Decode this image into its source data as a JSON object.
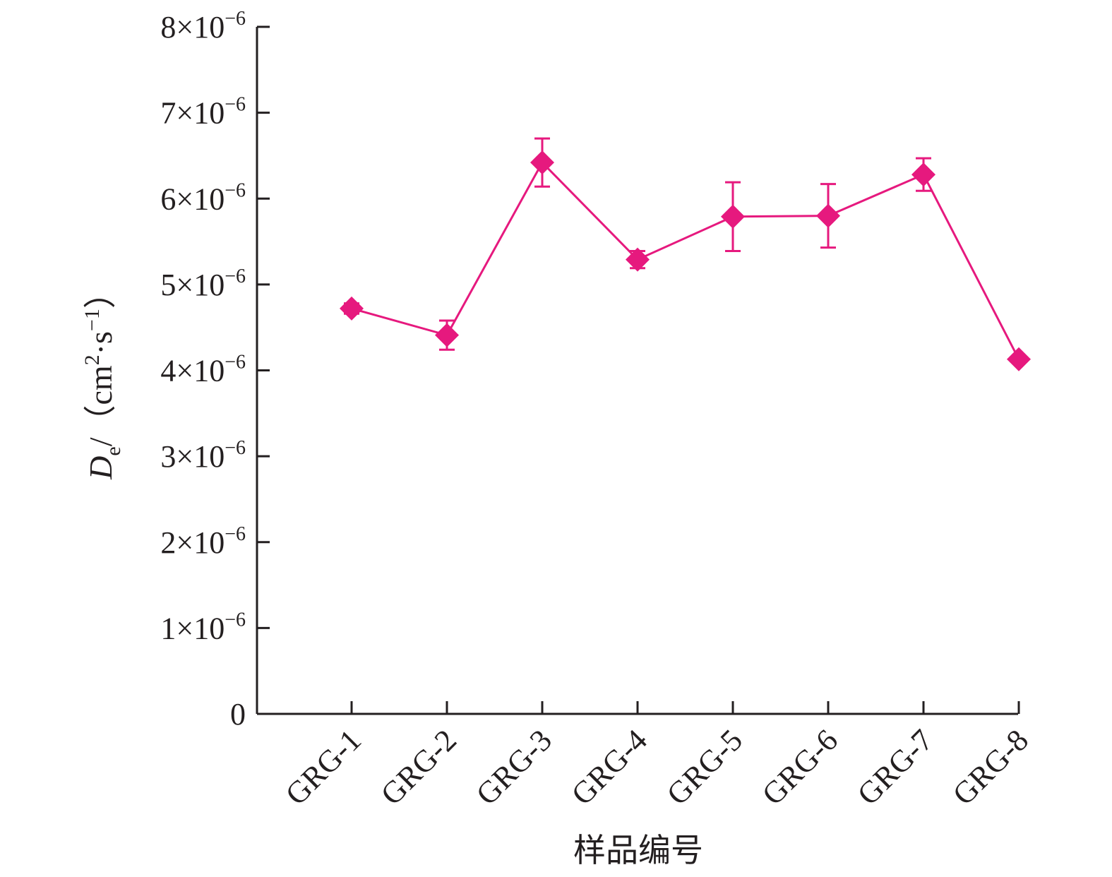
{
  "chart_data": {
    "type": "line",
    "title": "",
    "xlabel": "样品编号",
    "ylabel": {
      "symbol": "D",
      "subscript": "e",
      "unit_prefix": "/（cm",
      "unit_exp1": "2",
      "unit_mid": "·s",
      "unit_exp2": "−1",
      "unit_suffix": "）"
    },
    "categories": [
      "GRG-1",
      "GRG-2",
      "GRG-3",
      "GRG-4",
      "GRG-5",
      "GRG-6",
      "GRG-7",
      "GRG-8"
    ],
    "series": [
      {
        "values": [
          4.72e-06,
          4.41e-06,
          6.42e-06,
          5.29e-06,
          5.79e-06,
          5.8e-06,
          6.28e-06,
          4.13e-06
        ],
        "error_low": [
          4.66e-06,
          4.24e-06,
          6.14e-06,
          5.19e-06,
          5.39e-06,
          5.43e-06,
          6.09e-06,
          4.13e-06
        ],
        "error_high": [
          4.78e-06,
          4.58e-06,
          6.7e-06,
          5.39e-06,
          6.19e-06,
          6.17e-06,
          6.47e-06,
          4.13e-06
        ],
        "color": "#e6197e",
        "marker": "diamond"
      }
    ],
    "ylim": [
      0,
      8e-06
    ],
    "yticks": [
      {
        "value": 0,
        "mantissa": "0",
        "exponent": ""
      },
      {
        "value": 1e-06,
        "mantissa": "1×10",
        "exponent": "−6"
      },
      {
        "value": 2e-06,
        "mantissa": "2×10",
        "exponent": "−6"
      },
      {
        "value": 3e-06,
        "mantissa": "3×10",
        "exponent": "−6"
      },
      {
        "value": 4e-06,
        "mantissa": "4×10",
        "exponent": "−6"
      },
      {
        "value": 5e-06,
        "mantissa": "5×10",
        "exponent": "−6"
      },
      {
        "value": 6e-06,
        "mantissa": "6×10",
        "exponent": "−6"
      },
      {
        "value": 7e-06,
        "mantissa": "7×10",
        "exponent": "−6"
      },
      {
        "value": 8e-06,
        "mantissa": "8×10",
        "exponent": "−6"
      }
    ],
    "grid": false,
    "legend": "none",
    "axis_color": "#231f20"
  }
}
